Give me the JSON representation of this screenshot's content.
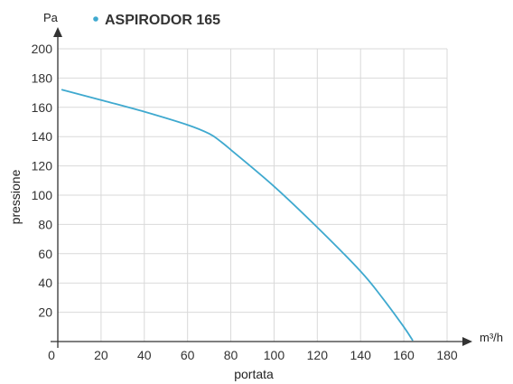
{
  "chart_data": {
    "type": "line",
    "xlabel": "portata",
    "ylabel": "pressione",
    "x_unit": "m³/h",
    "y_unit": "Pa",
    "xlim": [
      0,
      180
    ],
    "ylim": [
      0,
      200
    ],
    "x_ticks": [
      "0",
      "20",
      "40",
      "60",
      "80",
      "100",
      "120",
      "140",
      "160",
      "180"
    ],
    "y_ticks": [
      "20",
      "40",
      "60",
      "80",
      "100",
      "120",
      "140",
      "160",
      "180",
      "200"
    ],
    "grid": true,
    "legend_position": "top-left",
    "series": [
      {
        "name": "ASPIRODOR 165",
        "color": "#3fa9cf",
        "x": [
          2,
          20,
          40,
          60,
          70,
          75,
          80,
          100,
          120,
          140,
          150,
          160,
          164
        ],
        "y": [
          172,
          165,
          157,
          148,
          142,
          137,
          131,
          106,
          78,
          48,
          30,
          10,
          1
        ]
      }
    ]
  }
}
